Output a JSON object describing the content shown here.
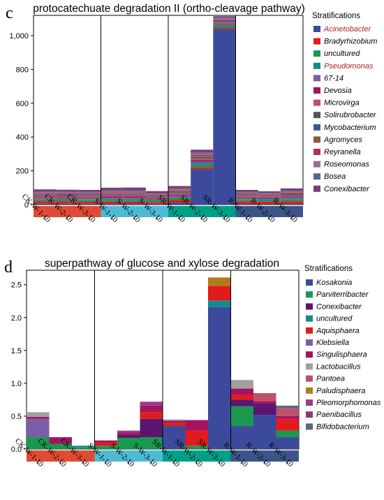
{
  "panel_c_letter": "c",
  "panel_d_letter": "d",
  "chart_data": [
    {
      "type": "bar",
      "stacked": true,
      "title": "protocatechuate degradation II (ortho-cleavage pathway)",
      "legend_title": "Stratifications",
      "legend_placement": "right",
      "categories": [
        "CK-W-1-10",
        "CK-W-2-10",
        "CK-W-3-10",
        "S-W-1-10",
        "S-W-2-10",
        "S-W-3-10",
        "SR-W-1-10",
        "SR-W-2-10",
        "SR-W-3-10",
        "R-W-1-10",
        "R-W-2-10",
        "R-W-3-10"
      ],
      "ylim": [
        0,
        1120
      ],
      "yticks": [
        0,
        200,
        400,
        600,
        800,
        1000
      ],
      "ytick_labels": [
        "0",
        "200",
        "400",
        "600",
        "800",
        "1,000"
      ],
      "groups": [
        {
          "members": 3,
          "color": "#E04B35"
        },
        {
          "members": 3,
          "color": "#4DBBD5"
        },
        {
          "members": 3,
          "color": "#00A087"
        },
        {
          "members": 3,
          "color": "#3C5488"
        }
      ],
      "series": [
        {
          "name": "Acinetobacter",
          "color": "#3C4A9B",
          "label_color": "#B22222",
          "values": [
            5,
            5,
            5,
            6,
            6,
            5,
            12,
            210,
            1040,
            4,
            4,
            4
          ]
        },
        {
          "name": "Bradyrhizobium",
          "color": "#E31A1C",
          "values": [
            15,
            14,
            13,
            12,
            12,
            11,
            15,
            12,
            8,
            14,
            13,
            15
          ]
        },
        {
          "name": "uncultured",
          "color": "#1A9850",
          "values": [
            10,
            10,
            10,
            10,
            10,
            9,
            12,
            14,
            10,
            10,
            10,
            11
          ]
        },
        {
          "name": "Pseudomonas",
          "color": "#178A8A",
          "label_color": "#B22222",
          "values": [
            4,
            4,
            4,
            5,
            5,
            4,
            5,
            10,
            6,
            4,
            4,
            5
          ]
        },
        {
          "name": "67-14",
          "color": "#7B5EA7",
          "values": [
            6,
            6,
            6,
            8,
            8,
            6,
            6,
            8,
            4,
            6,
            6,
            7
          ]
        },
        {
          "name": "Devosia",
          "color": "#A6135E",
          "values": [
            5,
            5,
            5,
            8,
            8,
            5,
            6,
            10,
            4,
            5,
            5,
            6
          ]
        },
        {
          "name": "Microvirga",
          "color": "#C0506A",
          "values": [
            6,
            6,
            6,
            6,
            6,
            5,
            7,
            8,
            6,
            6,
            5,
            6
          ]
        },
        {
          "name": "Solirubrobacter",
          "color": "#555555",
          "values": [
            4,
            4,
            4,
            4,
            4,
            3,
            4,
            5,
            4,
            4,
            3,
            4
          ]
        },
        {
          "name": "Mycobacterium",
          "color": "#3D5A80",
          "values": [
            4,
            4,
            4,
            4,
            4,
            3,
            5,
            5,
            5,
            4,
            3,
            4
          ]
        },
        {
          "name": "Agromyces",
          "color": "#8C5A40",
          "values": [
            4,
            4,
            4,
            4,
            4,
            3,
            5,
            6,
            4,
            4,
            3,
            4
          ]
        },
        {
          "name": "Reyranella",
          "color": "#B03060",
          "values": [
            5,
            5,
            5,
            6,
            6,
            4,
            6,
            7,
            5,
            5,
            4,
            5
          ]
        },
        {
          "name": "Roseomonas",
          "color": "#9E6B88",
          "values": [
            5,
            5,
            5,
            6,
            6,
            5,
            7,
            7,
            6,
            5,
            5,
            6
          ]
        },
        {
          "name": "Bosea",
          "color": "#5E5E94",
          "values": [
            5,
            5,
            5,
            6,
            6,
            5,
            6,
            7,
            5,
            5,
            4,
            6
          ]
        },
        {
          "name": "Conexibacter",
          "color": "#7A3E6F",
          "values": [
            12,
            11,
            11,
            15,
            16,
            12,
            14,
            16,
            8,
            11,
            10,
            13
          ]
        }
      ]
    },
    {
      "type": "bar",
      "stacked": true,
      "title": "superpathway of glucose and xylose degradation",
      "legend_title": "Stratifications",
      "legend_placement": "right",
      "categories": [
        "CK-W-1-10",
        "CK-W-2-10",
        "CK-W-3-10",
        "S-W-1-10",
        "S-W-2-10",
        "S-W-3-10",
        "SR-W-1-10",
        "SR-W-2-10",
        "SR-W-3-10",
        "R-W-1-10",
        "R-W-2-10",
        "R-W-3-10"
      ],
      "ylim": [
        0,
        2.72
      ],
      "yticks": [
        0,
        0.5,
        1.0,
        1.5,
        2.0,
        2.5
      ],
      "ytick_labels": [
        "0.0",
        "0.5",
        "1.0",
        "1.5",
        "2.0",
        "2.5"
      ],
      "groups": [
        {
          "members": 3,
          "color": "#E04B35"
        },
        {
          "members": 3,
          "color": "#4DBBD5"
        },
        {
          "members": 3,
          "color": "#00A087"
        },
        {
          "members": 3,
          "color": "#3C5488"
        }
      ],
      "series": [
        {
          "name": "Kosakonia",
          "color": "#3C4A9B",
          "values": [
            0,
            0,
            0,
            0,
            0,
            0,
            0.35,
            0,
            2.16,
            0.35,
            0.52,
            0.18
          ]
        },
        {
          "name": "Parviterribacter",
          "color": "#1A9850",
          "values": [
            0.18,
            0.08,
            0.03,
            0.05,
            0.17,
            0.18,
            0,
            0.05,
            0,
            0.3,
            0,
            0.1
          ]
        },
        {
          "name": "Conexibacter",
          "color": "#5B1670",
          "values": [
            0,
            0,
            0,
            0,
            0.05,
            0.28,
            0,
            0,
            0,
            0.1,
            0.17,
            0
          ]
        },
        {
          "name": "uncultured",
          "color": "#178A8A",
          "values": [
            0,
            0,
            0.02,
            0,
            0,
            0,
            0,
            0,
            0.1,
            0,
            0,
            0
          ]
        },
        {
          "name": "Aquisphaera",
          "color": "#E31A1C",
          "values": [
            0,
            0,
            0,
            0.05,
            0,
            0.1,
            0.05,
            0.23,
            0.22,
            0.07,
            0,
            0.18
          ]
        },
        {
          "name": "Klebsiella",
          "color": "#7B5EA7",
          "values": [
            0.28,
            0,
            0,
            0,
            0,
            0,
            0,
            0,
            0,
            0,
            0,
            0
          ]
        },
        {
          "name": "Singulisphaera",
          "color": "#A6135E",
          "values": [
            0.03,
            0.1,
            0,
            0.03,
            0.03,
            0.1,
            0.03,
            0.16,
            0,
            0.1,
            0.04,
            0.04
          ]
        },
        {
          "name": "Lactobacillus",
          "color": "#A0A0A0",
          "values": [
            0.07,
            0,
            0,
            0,
            0,
            0,
            0.02,
            0,
            0,
            0.13,
            0,
            0
          ]
        },
        {
          "name": "Pantoea",
          "color": "#C0506A",
          "values": [
            0,
            0,
            0,
            0,
            0,
            0,
            0,
            0,
            0,
            0,
            0.12,
            0.12
          ]
        },
        {
          "name": "Paludisphaera",
          "color": "#B07A1E",
          "values": [
            0,
            0,
            0,
            0,
            0,
            0,
            0,
            0,
            0.13,
            0,
            0,
            0
          ]
        },
        {
          "name": "Pleomorphomonas",
          "color": "#9A3C8A",
          "values": [
            0,
            0,
            0,
            0,
            0.03,
            0.06,
            0,
            0,
            0,
            0,
            0,
            0
          ]
        },
        {
          "name": "Paenibacillus",
          "color": "#8B3A75",
          "values": [
            0,
            0,
            0,
            0,
            0,
            0,
            0,
            0,
            0,
            0,
            0,
            0
          ]
        },
        {
          "name": "Bifidobacterium",
          "color": "#5E6680",
          "values": [
            0,
            0,
            0,
            0,
            0,
            0,
            0,
            0,
            0,
            0,
            0,
            0.04
          ]
        }
      ]
    }
  ]
}
